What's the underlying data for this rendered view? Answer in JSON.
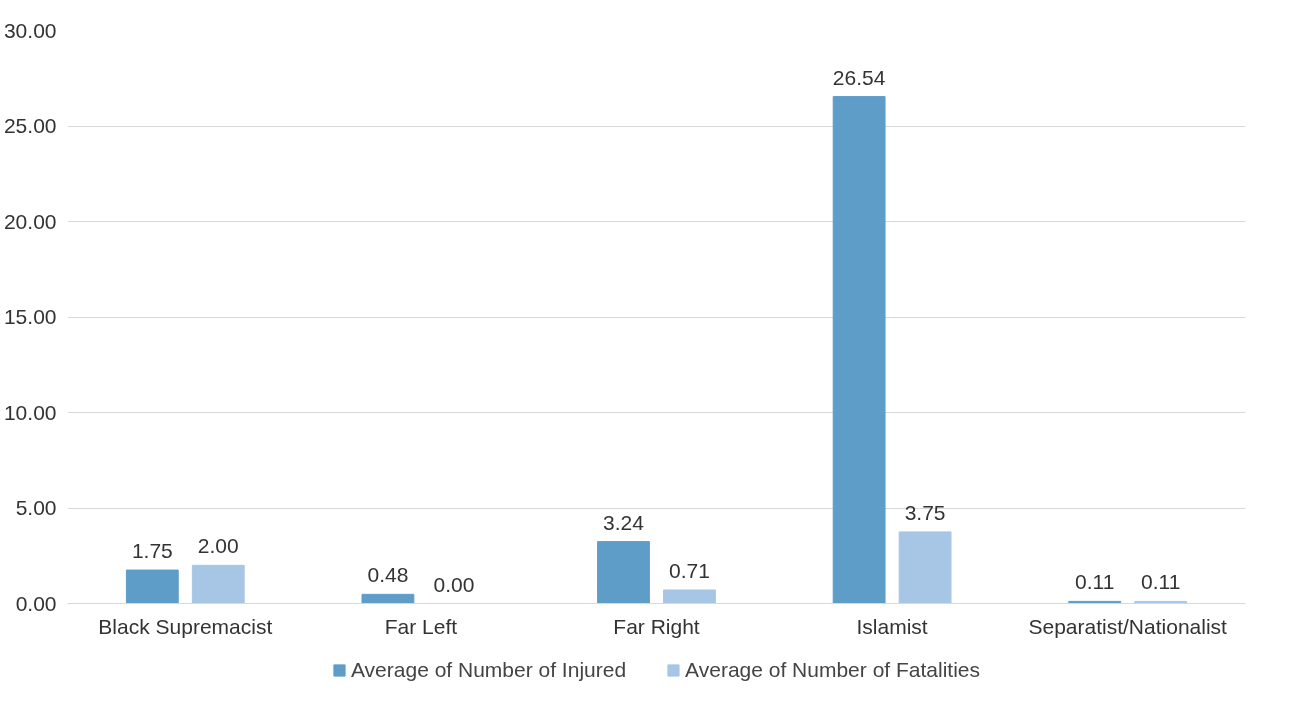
{
  "chart_data": {
    "type": "bar",
    "categories": [
      "Black Supremacist",
      "Far Left",
      "Far Right",
      "Islamist",
      "Separatist/Nationalist"
    ],
    "series": [
      {
        "name": "Average of Number of Injured",
        "color": "#5f9dc9",
        "values": [
          1.75,
          0.48,
          3.24,
          26.54,
          0.11
        ],
        "value_labels": [
          "1.75",
          "0.48",
          "3.24",
          "26.54",
          "0.11"
        ]
      },
      {
        "name": "Average of Number of Fatalities",
        "color": "#a7c6e5",
        "values": [
          2.0,
          0.0,
          0.71,
          3.75,
          0.11
        ],
        "value_labels": [
          "2.00",
          "0.00",
          "0.71",
          "3.75",
          "0.11"
        ]
      }
    ],
    "ylim": [
      0,
      30
    ],
    "yticks": [
      {
        "value": 0,
        "label": "0.00"
      },
      {
        "value": 5,
        "label": "5.00"
      },
      {
        "value": 10,
        "label": "10.00"
      },
      {
        "value": 15,
        "label": "15.00"
      },
      {
        "value": 20,
        "label": "20.00"
      },
      {
        "value": 25,
        "label": "25.00"
      },
      {
        "value": 30,
        "label": "30.00"
      }
    ],
    "grid": "y",
    "legend": "bottom"
  }
}
